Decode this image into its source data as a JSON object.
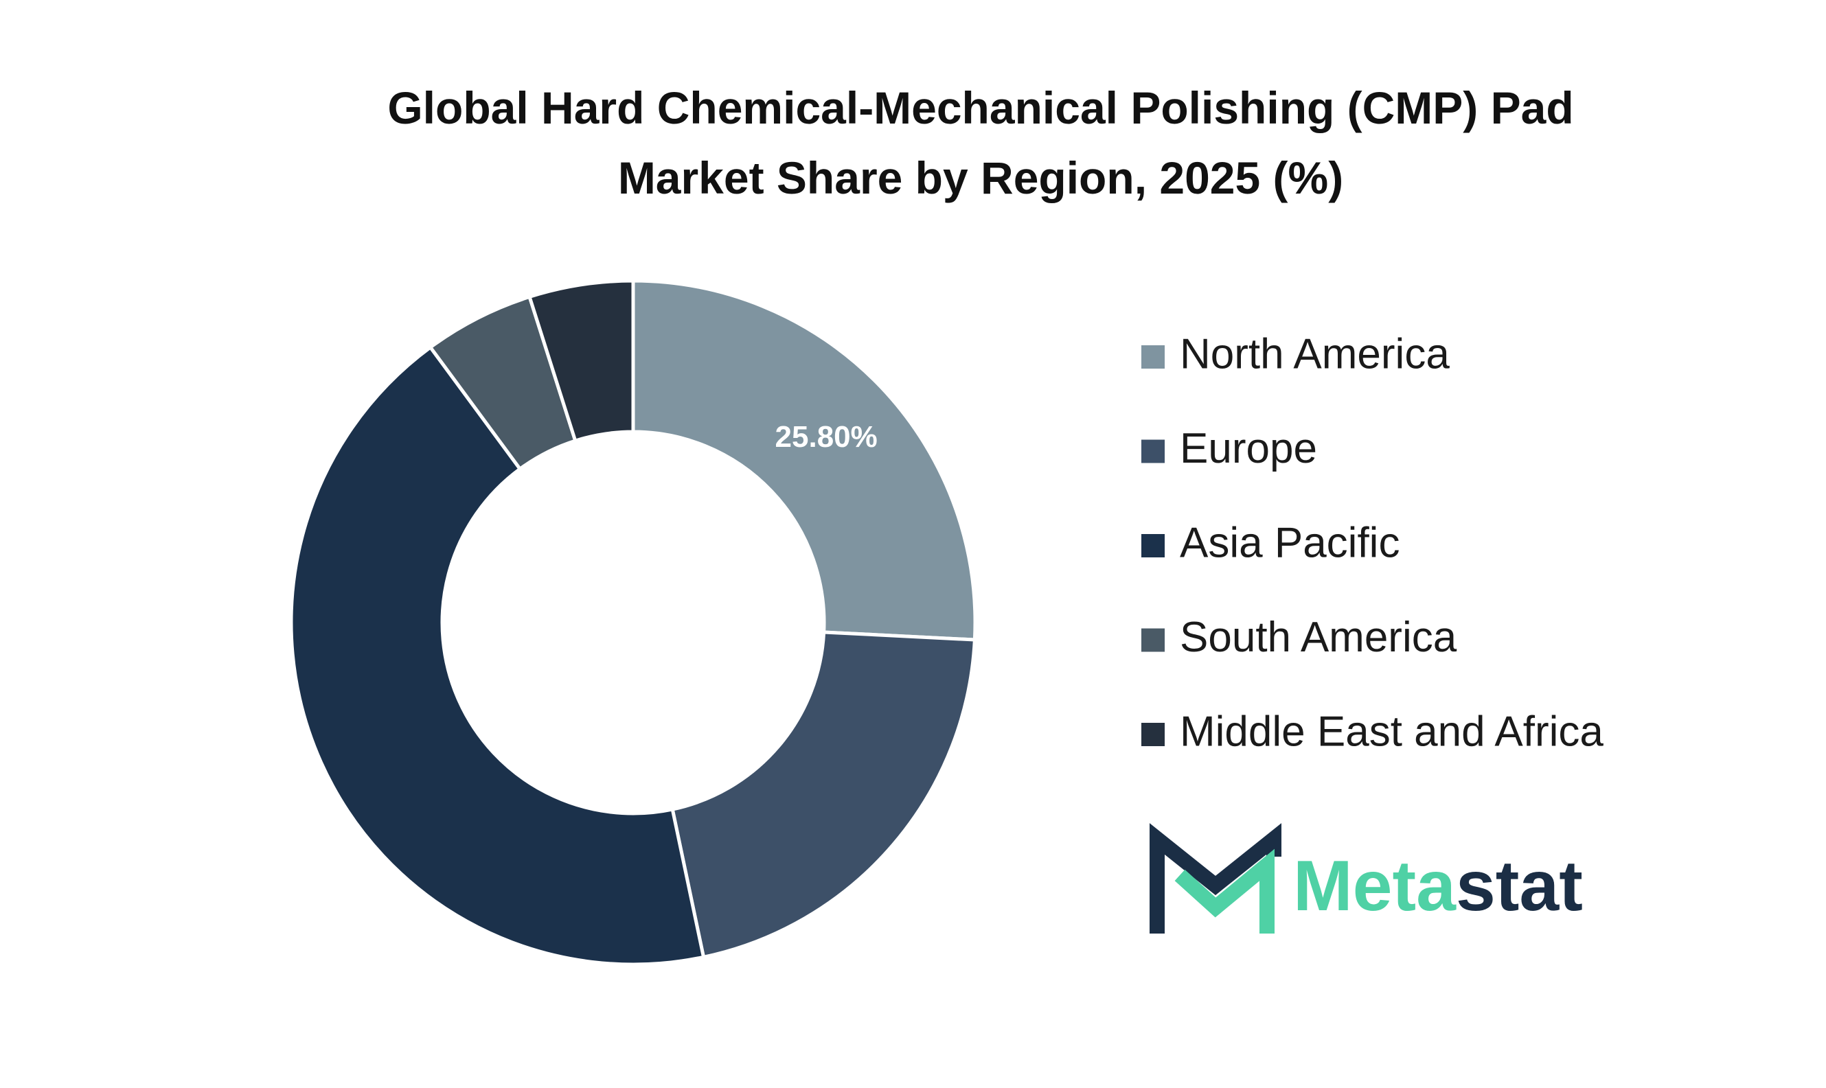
{
  "chart_data": {
    "type": "donut",
    "title": [
      "Global Hard Chemical-Mechanical Polishing (CMP) Pad",
      "Market Share by Region, 2025 (%)"
    ],
    "categories": [
      "North America",
      "Europe",
      "Asia Pacific",
      "South America",
      "Middle East and Africa"
    ],
    "values": [
      25.8,
      20.9,
      43.2,
      5.2,
      4.9
    ],
    "value_labels": [
      "25.80%",
      null,
      null,
      null,
      null
    ],
    "colors": [
      "#7f94a0",
      "#3d5068",
      "#1b314b",
      "#4a5a66",
      "#25303e"
    ],
    "legend": "right"
  },
  "logo": [
    "Meta",
    "stat"
  ]
}
